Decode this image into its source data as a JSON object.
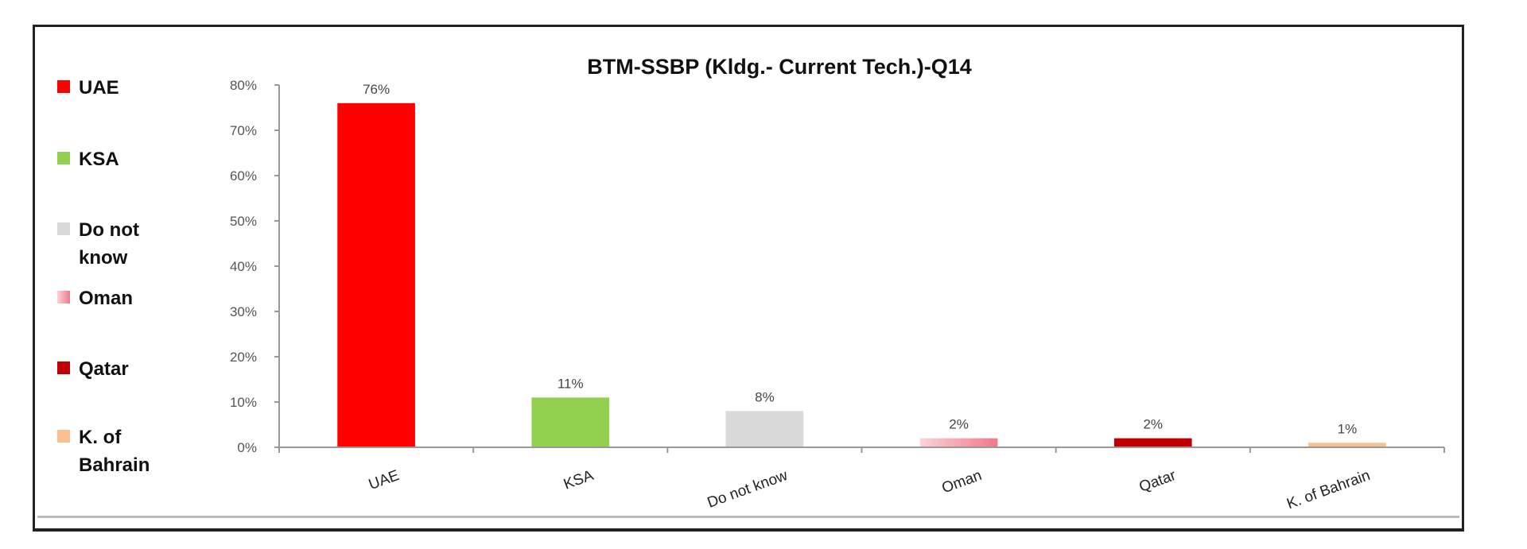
{
  "chart_data": {
    "type": "bar",
    "title": "BTM-SSBP (Kldg.- Current Tech.)-Q14",
    "xlabel": "",
    "ylabel": "",
    "ylim": [
      0,
      80
    ],
    "yticks": [
      "0%",
      "10%",
      "20%",
      "30%",
      "40%",
      "50%",
      "60%",
      "70%",
      "80%"
    ],
    "ytick_values": [
      0,
      10,
      20,
      30,
      40,
      50,
      60,
      70,
      80
    ],
    "categories": [
      "UAE",
      "KSA",
      "Do not know",
      "Oman",
      "Qatar",
      "K. of Bahrain"
    ],
    "values": [
      76,
      11,
      8,
      2,
      2,
      1
    ],
    "data_labels": [
      "76%",
      "11%",
      "8%",
      "2%",
      "2%",
      "1%"
    ],
    "colors": [
      "#ff0000",
      "#92d050",
      "#d9d9d9",
      "#f2909c",
      "#c00000",
      "#fac090"
    ],
    "grid": false,
    "legend_position": "left",
    "legend": [
      {
        "lines": [
          "UAE"
        ]
      },
      {
        "lines": [
          "KSA"
        ]
      },
      {
        "lines": [
          "Do not",
          "know"
        ]
      },
      {
        "lines": [
          "Oman"
        ]
      },
      {
        "lines": [
          "Qatar"
        ]
      },
      {
        "lines": [
          "K. of",
          "Bahrain"
        ]
      }
    ]
  }
}
